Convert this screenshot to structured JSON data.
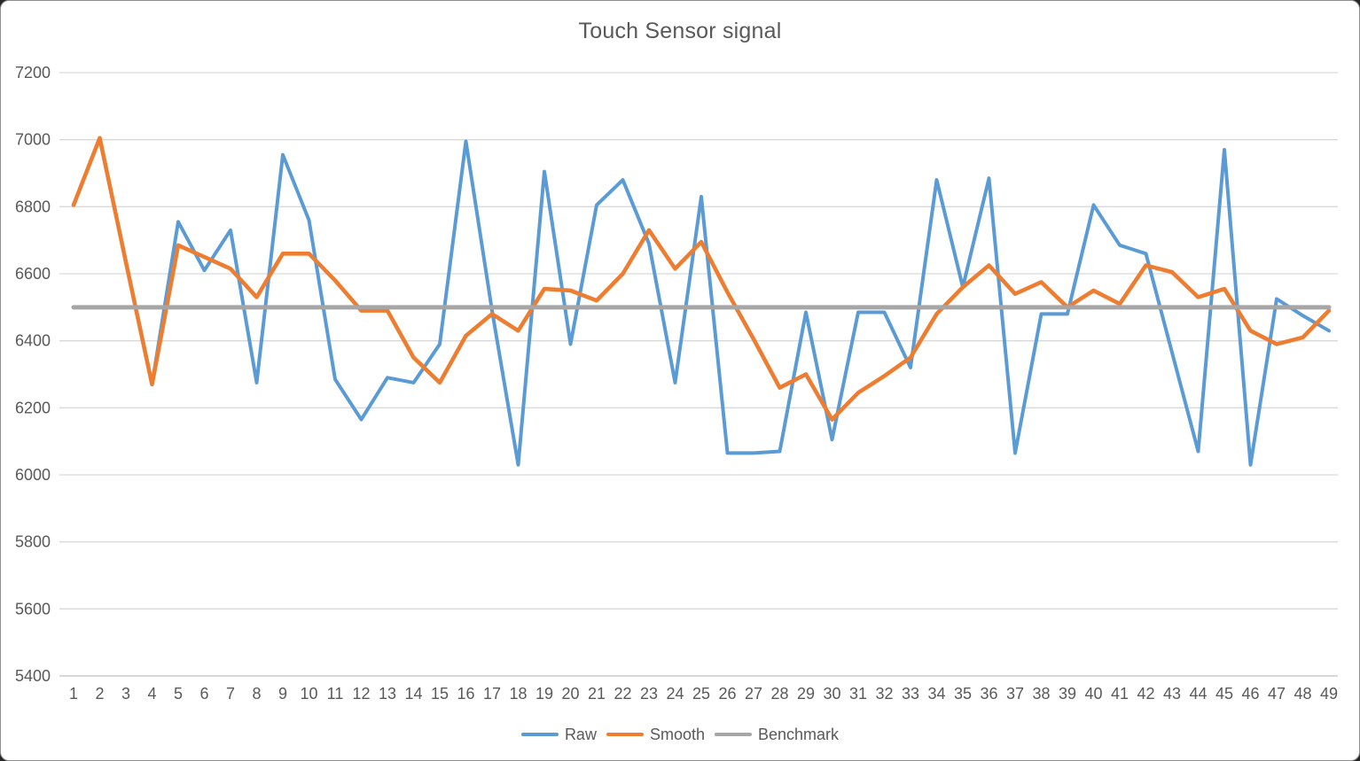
{
  "window": {
    "title": "Touch Sensor signal"
  },
  "chart_data": {
    "type": "line",
    "title": "Touch Sensor signal",
    "x": [
      1,
      2,
      3,
      4,
      5,
      6,
      7,
      8,
      9,
      10,
      11,
      12,
      13,
      14,
      15,
      16,
      17,
      18,
      19,
      20,
      21,
      22,
      23,
      24,
      25,
      26,
      27,
      28,
      29,
      30,
      31,
      32,
      33,
      34,
      35,
      36,
      37,
      38,
      39,
      40,
      41,
      42,
      43,
      44,
      45,
      46,
      47,
      48,
      49
    ],
    "series": [
      {
        "name": "Raw",
        "color": "#5B9BD5",
        "values": [
          6805,
          7005,
          6635,
          6270,
          6755,
          6610,
          6730,
          6275,
          6955,
          6760,
          6285,
          6165,
          6290,
          6275,
          6390,
          6995,
          6490,
          6030,
          6905,
          6390,
          6805,
          6880,
          6690,
          6275,
          6830,
          6065,
          6065,
          6070,
          6485,
          6105,
          6485,
          6485,
          6320,
          6880,
          6560,
          6885,
          6065,
          6480,
          6480,
          6805,
          6685,
          6660,
          6365,
          6070,
          6970,
          6030,
          6525,
          6475,
          6430
        ]
      },
      {
        "name": "Smooth",
        "color": "#ED7D31",
        "values": [
          6805,
          7005,
          6635,
          6270,
          6685,
          6650,
          6615,
          6530,
          6660,
          6660,
          6580,
          6490,
          6490,
          6350,
          6275,
          6415,
          6480,
          6430,
          6555,
          6550,
          6520,
          6600,
          6730,
          6615,
          6695,
          6545,
          6405,
          6260,
          6300,
          6165,
          6245,
          6295,
          6350,
          6480,
          6560,
          6625,
          6540,
          6575,
          6500,
          6550,
          6510,
          6625,
          6605,
          6530,
          6555,
          6430,
          6390,
          6410,
          6490
        ]
      },
      {
        "name": "Benchmark",
        "color": "#A6A6A6",
        "constant": 6500
      }
    ],
    "ylim": [
      5400,
      7200
    ],
    "y_ticks": [
      7200,
      7000,
      6800,
      6600,
      6400,
      6200,
      6000,
      5800,
      5600,
      5400
    ],
    "grid": true,
    "legend_position": "bottom",
    "xlabel": "",
    "ylabel": ""
  },
  "colors": {
    "raw": "#5B9BD5",
    "smooth": "#ED7D31",
    "benchmark": "#A6A6A6",
    "gridline": "#D9D9D9",
    "axis_line": "#BFBFBF",
    "text": "#595959",
    "background": "#FFFFFF"
  }
}
